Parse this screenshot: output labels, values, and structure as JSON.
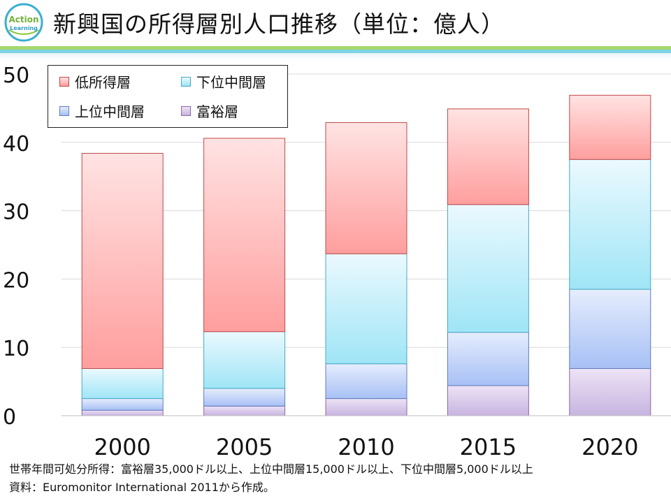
{
  "logo": {
    "line1": "Action",
    "line2": "Learning"
  },
  "title": "新興国の所得層別人口推移（単位：億人）",
  "colors": {
    "rich": {
      "top": "#ede3f5",
      "bottom": "#c7b4e0",
      "stroke": "#8a68a8"
    },
    "upper": {
      "top": "#e6edfd",
      "bottom": "#a7c0f5",
      "stroke": "#5f7cc0"
    },
    "lower": {
      "top": "#ebf9fe",
      "bottom": "#9fe5f6",
      "stroke": "#47a9c6"
    },
    "low": {
      "top": "#ffe3e3",
      "bottom": "#ff9e9e",
      "stroke": "#c04848"
    }
  },
  "chart_data": {
    "type": "bar",
    "stacked": true,
    "title": "新興国の所得層別人口推移（単位：億人）",
    "categories": [
      "2000",
      "2005",
      "2010",
      "2015",
      "2020"
    ],
    "series": [
      {
        "key": "rich",
        "name": "富裕層",
        "values": [
          0.8,
          1.4,
          2.5,
          4.4,
          6.9
        ]
      },
      {
        "key": "upper",
        "name": "上位中間層",
        "values": [
          1.7,
          2.6,
          5.1,
          7.8,
          11.6
        ]
      },
      {
        "key": "lower",
        "name": "下位中間層",
        "values": [
          4.4,
          8.3,
          16.1,
          18.7,
          19.0
        ]
      },
      {
        "key": "low",
        "name": "低所得層",
        "values": [
          31.5,
          28.3,
          19.2,
          14.0,
          9.4
        ]
      }
    ],
    "ylim": [
      0,
      50
    ],
    "yticks": [
      "0",
      "10",
      "20",
      "30",
      "40",
      "50"
    ],
    "grid": true,
    "legend": {
      "position": "top-left",
      "items": [
        {
          "key": "low",
          "label": "低所得層"
        },
        {
          "key": "lower",
          "label": "下位中間層"
        },
        {
          "key": "upper",
          "label": "上位中間層"
        },
        {
          "key": "rich",
          "label": "富裕層"
        }
      ]
    }
  },
  "notes": {
    "definition": "世帯年間可処分所得：富裕層35,000ドル以上、上位中間層15,000ドル以上、下位中間層5,000ドル以上",
    "source": "資料：Euromonitor International 2011から作成。"
  }
}
